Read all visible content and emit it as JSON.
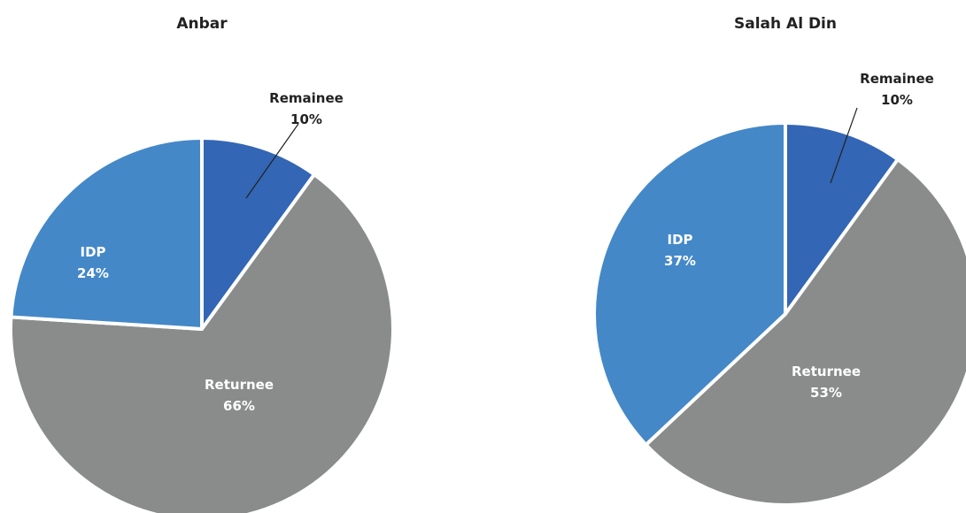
{
  "colors": {
    "remainee": "#3366b4",
    "returnee": "#8a8c8c",
    "idp": "#4488c8",
    "label_light": "#ffffff",
    "label_dark": "#222222",
    "leader": "#222222",
    "separator": "#ffffff"
  },
  "chart_data": [
    {
      "type": "pie",
      "title": "Anbar",
      "slices": [
        {
          "category": "Remainee",
          "value": 10,
          "label_pct": "10%",
          "color": "#3366b4",
          "label_outside": true
        },
        {
          "category": "Returnee",
          "value": 66,
          "label_pct": "66%",
          "color": "#8a8c8c",
          "label_outside": false
        },
        {
          "category": "IDP",
          "value": 24,
          "label_pct": "24%",
          "color": "#4488c8",
          "label_outside": false
        }
      ]
    },
    {
      "type": "pie",
      "title": "Salah Al Din",
      "slices": [
        {
          "category": "Remainee",
          "value": 10,
          "label_pct": "10%",
          "color": "#3366b4",
          "label_outside": true
        },
        {
          "category": "Returnee",
          "value": 53,
          "label_pct": "53%",
          "color": "#8a8c8c",
          "label_outside": false
        },
        {
          "category": "IDP",
          "value": 37,
          "label_pct": "37%",
          "color": "#4488c8",
          "label_outside": false
        }
      ]
    }
  ]
}
